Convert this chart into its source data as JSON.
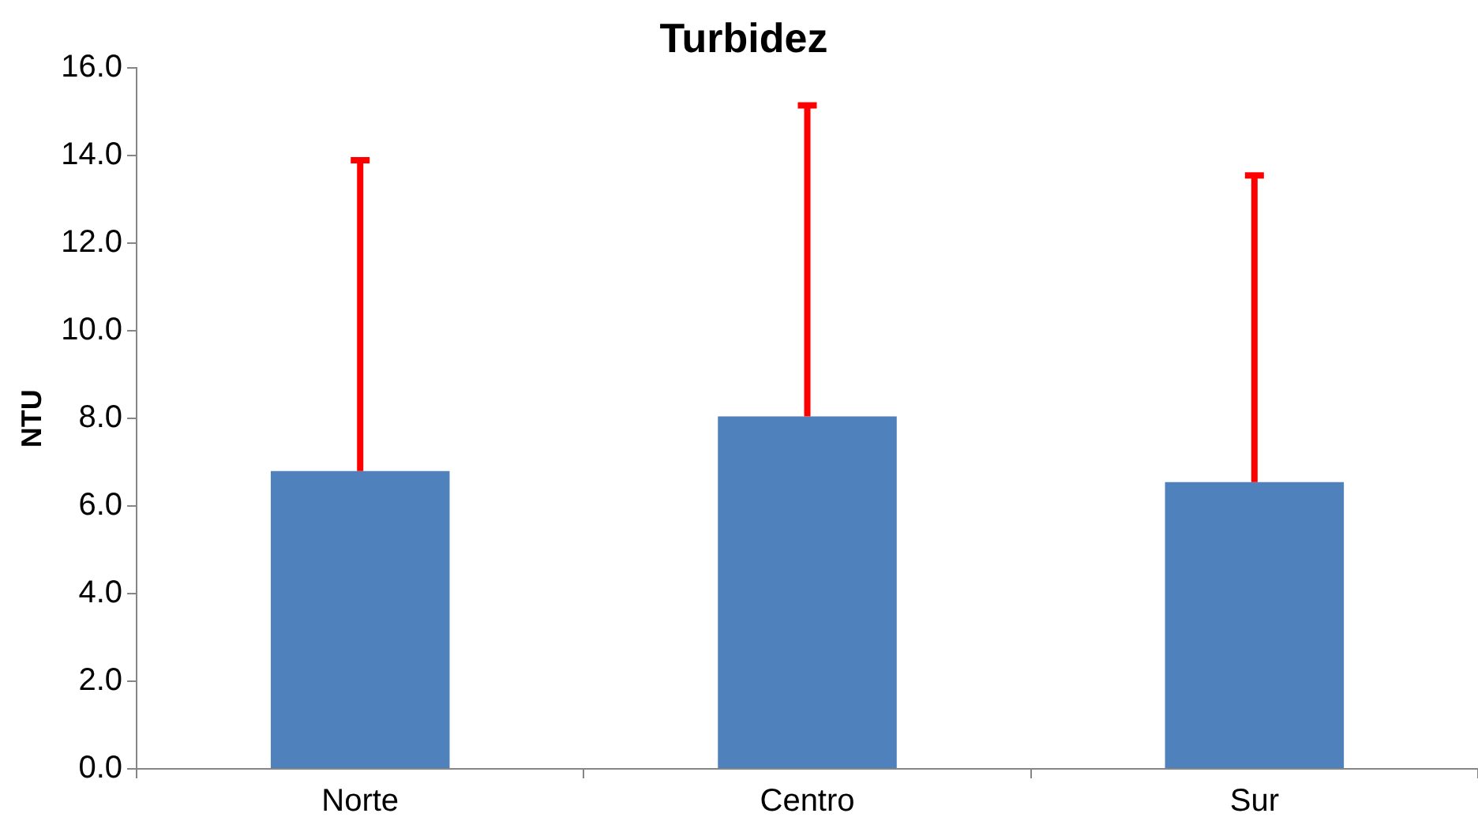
{
  "chart_data": {
    "type": "bar",
    "title": "Turbidez",
    "ylabel": "NTU",
    "categories": [
      "Norte",
      "Centro",
      "Sur"
    ],
    "series": [
      {
        "color": "#4f81bd",
        "values": [
          6.8,
          8.05,
          6.55
        ],
        "errors": [
          [
            6.8,
            13.9
          ],
          [
            8.05,
            15.15
          ],
          [
            6.55,
            13.55
          ]
        ]
      }
    ],
    "ylim": [
      0,
      16
    ],
    "yticks": [
      {
        "value": 0,
        "label": "0.0"
      },
      {
        "value": 2,
        "label": "2.0"
      },
      {
        "value": 4,
        "label": "4.0"
      },
      {
        "value": 6,
        "label": "6.0"
      },
      {
        "value": 8,
        "label": "8.0"
      },
      {
        "value": 10,
        "label": "10.0"
      },
      {
        "value": 12,
        "label": "12.0"
      },
      {
        "value": 14,
        "label": "14.0"
      },
      {
        "value": 16,
        "label": "16.0"
      }
    ],
    "grid": false,
    "legend": false
  }
}
